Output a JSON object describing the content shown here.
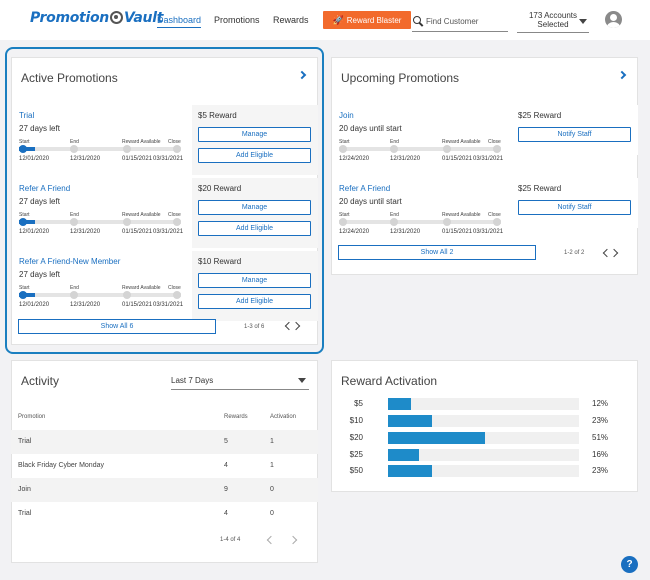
{
  "header": {
    "logo": {
      "part1": "Promotion",
      "part2": "Vault"
    },
    "nav": [
      "Dashboard",
      "Promotions",
      "Rewards"
    ],
    "reward_blaster": "Reward Blaster",
    "search_placeholder": "Find Customer",
    "accounts_line1": "173 Accounts",
    "accounts_line2": "Selected"
  },
  "active": {
    "title": "Active Promotions",
    "labels": {
      "start": "Start",
      "end": "End",
      "reward": "Reward Available",
      "close": "Close"
    },
    "items": [
      {
        "name": "Trial",
        "days": "27 days left",
        "start": "12/01/2020",
        "end": "12/31/2020",
        "reward_date": "01/15/2021",
        "close": "03/31/2021",
        "progress": 0.1,
        "reward": "$5 Reward",
        "manage": "Manage",
        "add": "Add Eligible"
      },
      {
        "name": "Refer A Friend",
        "days": "27 days left",
        "start": "12/01/2020",
        "end": "12/31/2020",
        "reward_date": "01/15/2021",
        "close": "03/31/2021",
        "progress": 0.1,
        "reward": "$20 Reward",
        "manage": "Manage",
        "add": "Add Eligible"
      },
      {
        "name": "Refer A Friend-New Member",
        "days": "27 days left",
        "start": "12/01/2020",
        "end": "12/31/2020",
        "reward_date": "01/15/2021",
        "close": "03/31/2021",
        "progress": 0.1,
        "reward": "$10 Reward",
        "manage": "Manage",
        "add": "Add Eligible"
      }
    ],
    "show_all": "Show All 6",
    "pager": "1-3 of 6"
  },
  "upcoming": {
    "title": "Upcoming Promotions",
    "items": [
      {
        "name": "Join",
        "days": "20 days until start",
        "start": "12/24/2020",
        "end": "12/31/2020",
        "reward_date": "01/15/2021",
        "close": "03/31/2021",
        "reward": "$25 Reward",
        "notify": "Notify Staff"
      },
      {
        "name": "Refer A Friend",
        "days": "20 days until start",
        "start": "12/24/2020",
        "end": "12/31/2020",
        "reward_date": "01/15/2021",
        "close": "03/31/2021",
        "reward": "$25 Reward",
        "notify": "Notify Staff"
      }
    ],
    "show_all": "Show All 2",
    "pager": "1-2 of 2"
  },
  "activity": {
    "title": "Activity",
    "period": "Last 7 Days",
    "headers": {
      "promotion": "Promotion",
      "rewards": "Rewards",
      "activation": "Activation"
    },
    "rows": [
      {
        "promotion": "Trial",
        "rewards": "5",
        "activation": "1"
      },
      {
        "promotion": "Black Friday Cyber Monday",
        "rewards": "4",
        "activation": "1"
      },
      {
        "promotion": "Join",
        "rewards": "9",
        "activation": "0"
      },
      {
        "promotion": "Trial",
        "rewards": "4",
        "activation": "0"
      }
    ],
    "pager": "1-4 of 4"
  },
  "reward_activation": {
    "title": "Reward Activation",
    "bars": [
      {
        "label": "$5",
        "pct": "12%",
        "value": 0.12
      },
      {
        "label": "$10",
        "pct": "23%",
        "value": 0.23
      },
      {
        "label": "$20",
        "pct": "51%",
        "value": 0.51
      },
      {
        "label": "$25",
        "pct": "16%",
        "value": 0.16
      },
      {
        "label": "$50",
        "pct": "23%",
        "value": 0.23
      }
    ]
  },
  "help": "?",
  "colors": {
    "brand_blue": "#1a6fc0",
    "orange": "#f26a2c",
    "bar_blue": "#1e8bc9"
  }
}
